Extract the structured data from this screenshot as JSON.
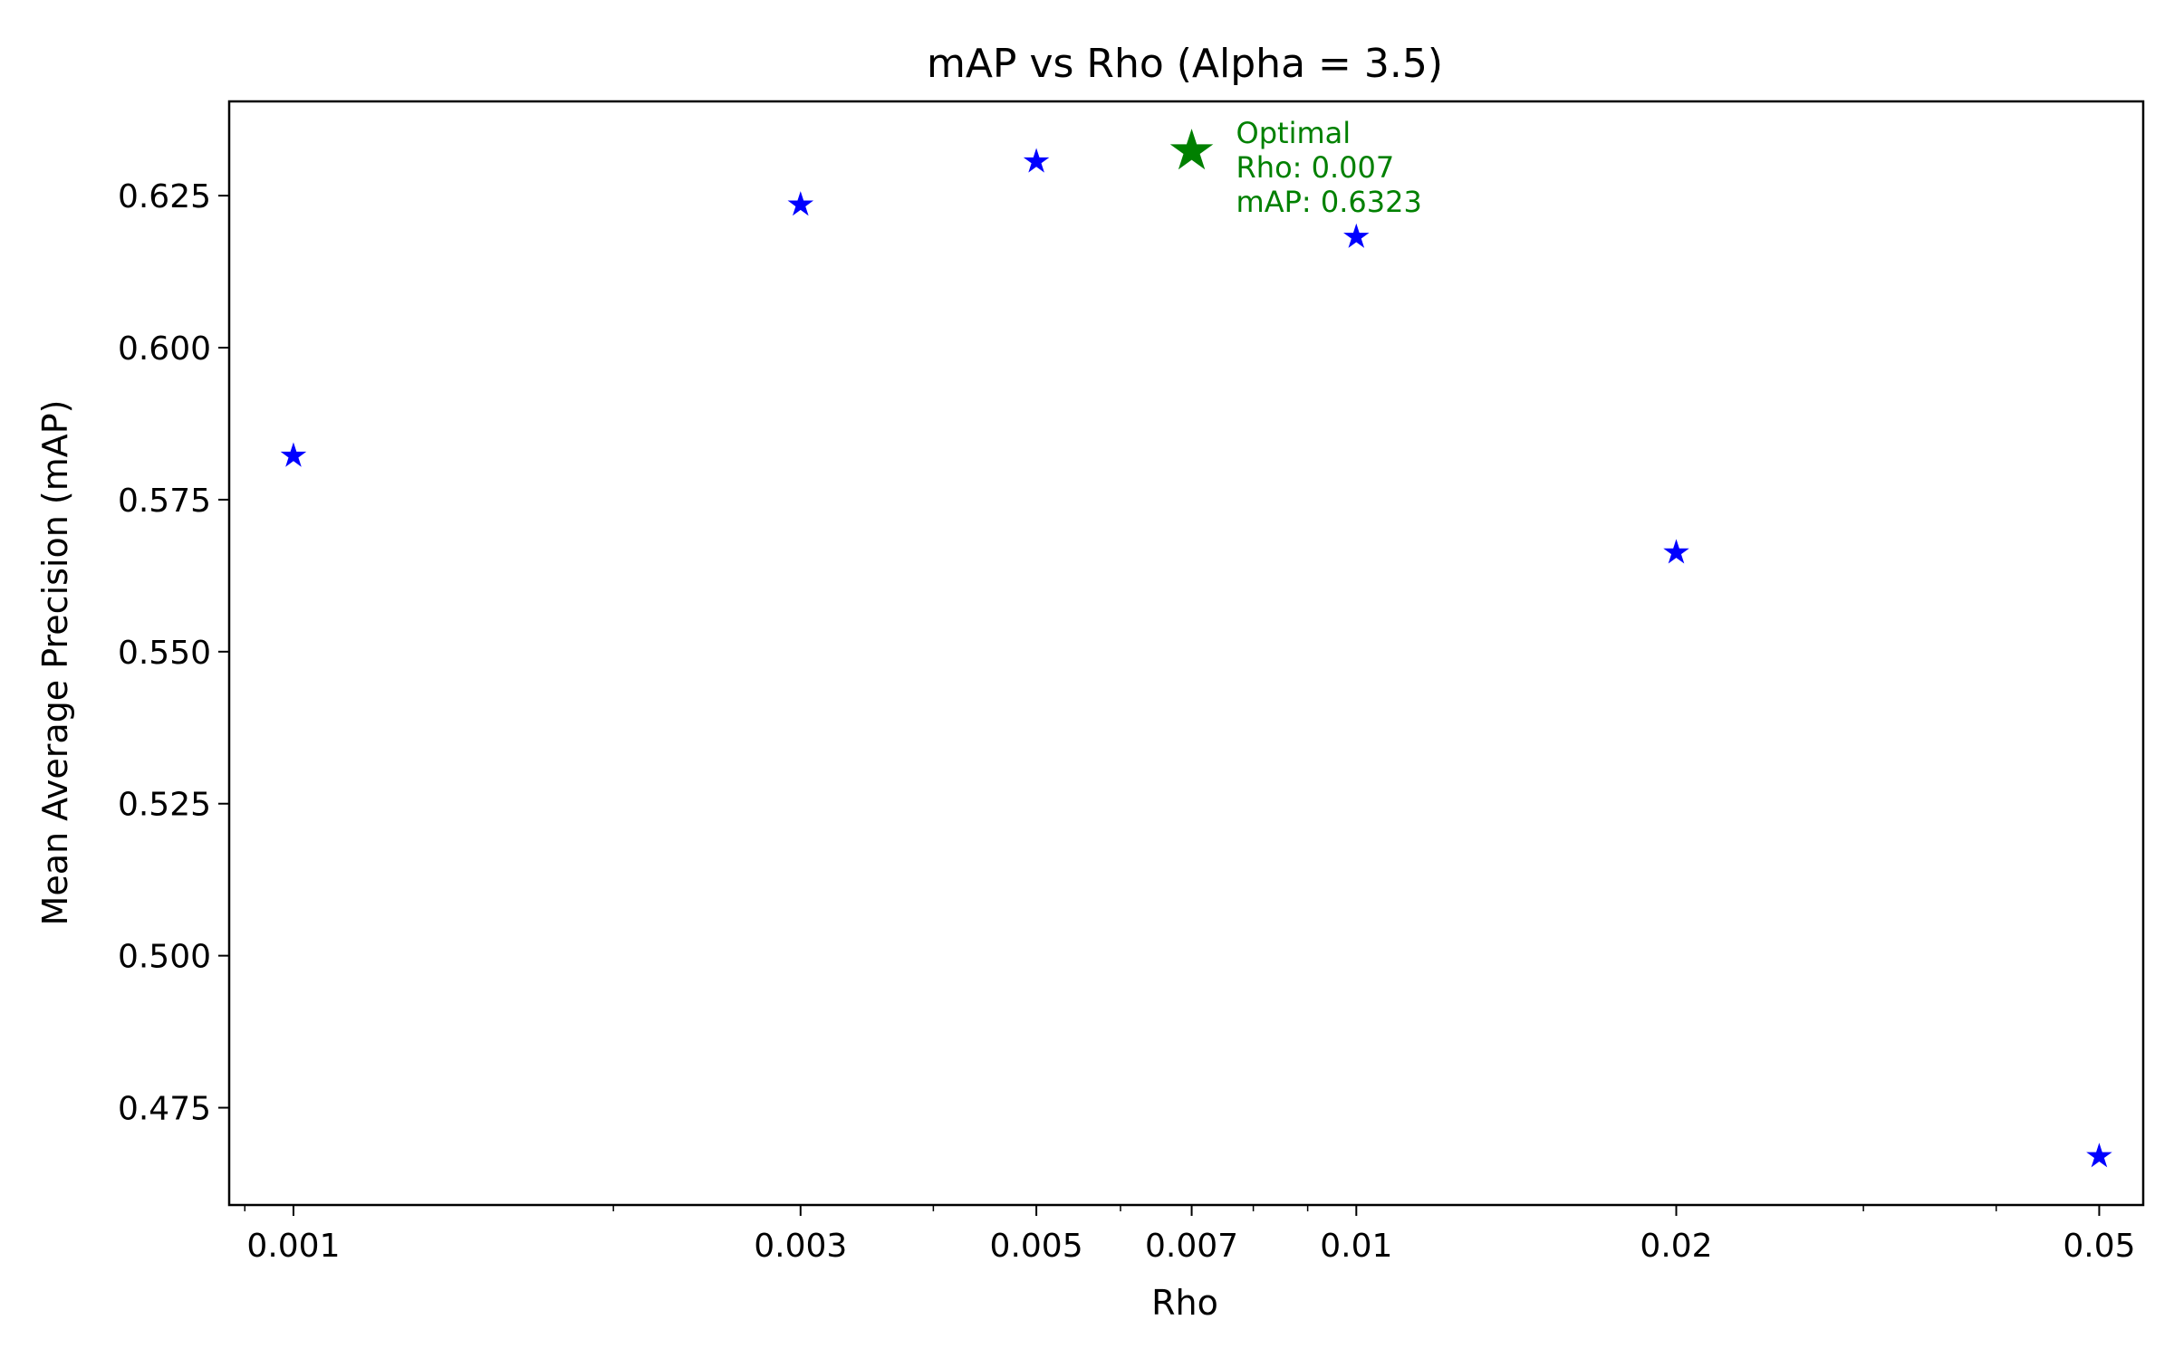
{
  "chart_data": {
    "type": "scatter",
    "title": "mAP vs Rho (Alpha = 3.5)",
    "xlabel": "Rho",
    "ylabel": "Mean Average Precision (mAP)",
    "xscale": "log",
    "xlim": [
      0.00087,
      0.055
    ],
    "ylim": [
      0.459,
      0.6405
    ],
    "xticks": [
      {
        "value": 0.001,
        "label": "0.001"
      },
      {
        "value": 0.003,
        "label": "0.003"
      },
      {
        "value": 0.005,
        "label": "0.005"
      },
      {
        "value": 0.007,
        "label": "0.007"
      },
      {
        "value": 0.01,
        "label": "0.01"
      },
      {
        "value": 0.02,
        "label": "0.02"
      },
      {
        "value": 0.05,
        "label": "0.05"
      }
    ],
    "yticks": [
      {
        "value": 0.475,
        "label": "0.475"
      },
      {
        "value": 0.5,
        "label": "0.500"
      },
      {
        "value": 0.525,
        "label": "0.525"
      },
      {
        "value": 0.55,
        "label": "0.550"
      },
      {
        "value": 0.575,
        "label": "0.575"
      },
      {
        "value": 0.6,
        "label": "0.600"
      },
      {
        "value": 0.625,
        "label": "0.625"
      }
    ],
    "grid": false,
    "series": [
      {
        "color": "#0000ff",
        "marker": "star",
        "points": [
          {
            "x": 0.001,
            "y": 0.5822
          },
          {
            "x": 0.003,
            "y": 0.6235
          },
          {
            "x": 0.005,
            "y": 0.6306
          },
          {
            "x": 0.01,
            "y": 0.6182
          },
          {
            "x": 0.02,
            "y": 0.5663
          },
          {
            "x": 0.05,
            "y": 0.467
          }
        ]
      }
    ],
    "highlight": {
      "x": 0.007,
      "y": 0.6323,
      "color": "#008000",
      "marker": "star",
      "annotation": [
        "Optimal",
        "Rho: 0.007",
        "mAP: 0.6323"
      ]
    }
  }
}
